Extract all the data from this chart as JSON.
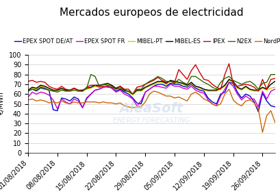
{
  "title": "Mercados europeos de electricidad",
  "ylabel": "€/MWh",
  "ylim": [
    0,
    100
  ],
  "yticks": [
    0,
    10,
    20,
    30,
    40,
    50,
    60,
    70,
    80,
    90,
    100
  ],
  "background_color": "#ffffff",
  "series": {
    "EPEX SPOT DE/AT": {
      "color": "#0000cc",
      "linewidth": 1.0,
      "values": [
        63,
        65,
        64,
        67,
        66,
        64,
        44,
        43,
        56,
        55,
        53,
        57,
        55,
        46,
        56,
        60,
        64,
        65,
        67,
        68,
        66,
        63,
        65,
        62,
        60,
        56,
        51,
        50,
        62,
        65,
        68,
        70,
        70,
        68,
        71,
        70,
        70,
        68,
        67,
        70,
        66,
        64,
        63,
        56,
        52,
        50,
        60,
        62,
        72,
        71,
        62,
        56,
        60,
        58,
        52,
        42,
        61,
        53,
        48,
        47
      ]
    },
    "EPEX SPOT FR": {
      "color": "#cc00cc",
      "linewidth": 1.0,
      "values": [
        57,
        62,
        60,
        62,
        61,
        59,
        54,
        45,
        55,
        52,
        50,
        55,
        53,
        46,
        55,
        60,
        64,
        65,
        67,
        68,
        66,
        62,
        64,
        60,
        58,
        55,
        48,
        53,
        62,
        65,
        68,
        68,
        67,
        66,
        70,
        68,
        68,
        66,
        65,
        68,
        64,
        62,
        61,
        54,
        50,
        48,
        58,
        65,
        72,
        68,
        60,
        54,
        58,
        55,
        55,
        47,
        63,
        55,
        63,
        65
      ]
    },
    "MIBEL-PT": {
      "color": "#cccc00",
      "linewidth": 1.0,
      "values": [
        63,
        66,
        65,
        68,
        67,
        65,
        63,
        63,
        65,
        63,
        63,
        65,
        63,
        63,
        65,
        66,
        68,
        68,
        69,
        70,
        68,
        65,
        67,
        63,
        62,
        59,
        63,
        63,
        66,
        68,
        70,
        72,
        72,
        70,
        73,
        72,
        71,
        70,
        68,
        71,
        67,
        66,
        64,
        63,
        63,
        63,
        65,
        68,
        74,
        72,
        66,
        64,
        67,
        64,
        63,
        63,
        66,
        64,
        66,
        67
      ]
    },
    "MIBEL-ES": {
      "color": "#000000",
      "linewidth": 1.0,
      "values": [
        64,
        67,
        66,
        69,
        68,
        66,
        64,
        64,
        66,
        64,
        64,
        66,
        64,
        64,
        66,
        67,
        69,
        69,
        70,
        71,
        69,
        66,
        68,
        64,
        63,
        60,
        64,
        64,
        67,
        69,
        71,
        73,
        73,
        71,
        74,
        73,
        72,
        71,
        69,
        72,
        68,
        67,
        65,
        64,
        64,
        64,
        66,
        69,
        75,
        73,
        67,
        65,
        68,
        65,
        64,
        64,
        67,
        65,
        70,
        73
      ]
    },
    "IPEX": {
      "color": "#cc0000",
      "linewidth": 1.0,
      "values": [
        73,
        74,
        72,
        73,
        72,
        68,
        66,
        65,
        68,
        65,
        64,
        66,
        64,
        63,
        67,
        69,
        69,
        67,
        68,
        67,
        67,
        65,
        68,
        65,
        65,
        60,
        67,
        68,
        70,
        72,
        74,
        77,
        74,
        72,
        73,
        72,
        85,
        80,
        75,
        84,
        90,
        82,
        75,
        74,
        70,
        67,
        65,
        80,
        91,
        70,
        68,
        69,
        70,
        69,
        67,
        63,
        75,
        65,
        75,
        76
      ]
    },
    "N2EX": {
      "color": "#336600",
      "linewidth": 1.0,
      "values": [
        63,
        65,
        63,
        66,
        65,
        64,
        63,
        62,
        64,
        63,
        63,
        64,
        63,
        63,
        66,
        80,
        78,
        68,
        70,
        69,
        68,
        65,
        66,
        63,
        63,
        60,
        65,
        65,
        70,
        73,
        75,
        78,
        76,
        73,
        73,
        71,
        75,
        72,
        70,
        78,
        78,
        75,
        72,
        70,
        67,
        65,
        72,
        76,
        78,
        74,
        72,
        70,
        72,
        73,
        70,
        65,
        71,
        72,
        80,
        80
      ]
    },
    "NordPool": {
      "color": "#cc6600",
      "linewidth": 1.0,
      "values": [
        54,
        55,
        53,
        54,
        53,
        51,
        52,
        51,
        53,
        51,
        50,
        52,
        51,
        51,
        52,
        52,
        52,
        51,
        52,
        51,
        51,
        50,
        51,
        48,
        47,
        46,
        47,
        47,
        52,
        60,
        63,
        62,
        60,
        58,
        58,
        56,
        57,
        55,
        53,
        60,
        62,
        59,
        55,
        53,
        50,
        48,
        50,
        60,
        65,
        54,
        50,
        48,
        53,
        54,
        51,
        45,
        21,
        38,
        43,
        31
      ]
    }
  },
  "x_tick_labels": [
    "01/08/2018",
    "08/08/2018",
    "15/08/2018",
    "22/08/2018",
    "29/08/2018",
    "05/09/2018",
    "12/09/2018",
    "19/09/2018",
    "26/09/2018"
  ],
  "x_tick_positions": [
    0,
    7,
    14,
    21,
    28,
    35,
    42,
    49,
    56
  ],
  "title_fontsize": 11,
  "legend_fontsize": 6,
  "tick_fontsize": 7
}
